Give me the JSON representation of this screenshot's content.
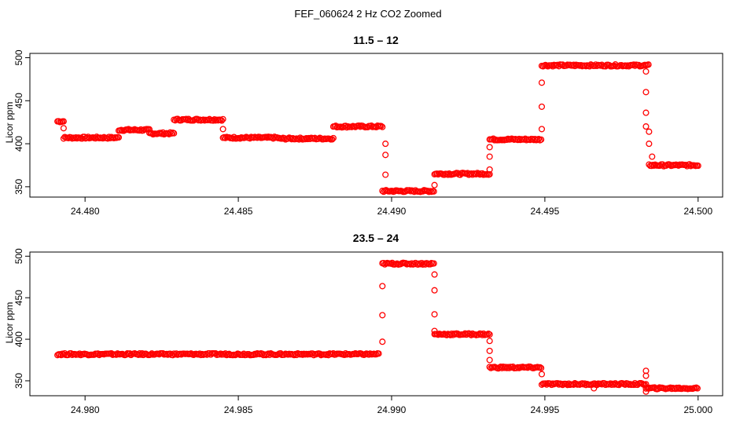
{
  "figure": {
    "title": "FEF_060624  2 Hz CO2 Zoomed"
  },
  "colors": {
    "points": "#ff0000",
    "axes": "#000000",
    "background": "#ffffff"
  },
  "chart_data": [
    {
      "type": "scatter",
      "title": "11.5 – 12",
      "xlabel": "",
      "ylabel": "Licor ppm",
      "xlim": [
        24.4782,
        24.5008
      ],
      "ylim": [
        338,
        505
      ],
      "xticks": [
        24.48,
        24.485,
        24.49,
        24.495,
        24.5
      ],
      "xtick_labels": [
        "24.480",
        "24.485",
        "24.490",
        "24.495",
        "24.500"
      ],
      "yticks": [
        350,
        400,
        450,
        500
      ],
      "ytick_labels": [
        "350",
        "400",
        "450",
        "500"
      ],
      "grid": false,
      "marker": "open-circle",
      "segments": [
        {
          "x_start": 24.4791,
          "x_end": 24.4793,
          "y": 426
        },
        {
          "x_start": 24.4793,
          "x_end": 24.4811,
          "y": 407
        },
        {
          "x_start": 24.4811,
          "x_end": 24.4821,
          "y": 416
        },
        {
          "x_start": 24.4821,
          "x_end": 24.4829,
          "y": 412
        },
        {
          "x_start": 24.4829,
          "x_end": 24.4845,
          "y": 428
        },
        {
          "x_start": 24.4845,
          "x_end": 24.4863,
          "y": 407
        },
        {
          "x_start": 24.4863,
          "x_end": 24.4881,
          "y": 406
        },
        {
          "x_start": 24.4881,
          "x_end": 24.4897,
          "y": 420
        },
        {
          "x_start": 24.4897,
          "x_end": 24.4914,
          "y": 345
        },
        {
          "x_start": 24.4914,
          "x_end": 24.4932,
          "y": 365
        },
        {
          "x_start": 24.4932,
          "x_end": 24.4949,
          "y": 405
        },
        {
          "x_start": 24.4949,
          "x_end": 24.4984,
          "y": 491
        },
        {
          "x_start": 24.4984,
          "x_end": 24.5,
          "y": 375
        }
      ],
      "transition_points": [
        {
          "x": 24.4793,
          "y": 418
        },
        {
          "x": 24.4845,
          "y": 417
        },
        {
          "x": 24.4898,
          "y": 400
        },
        {
          "x": 24.4898,
          "y": 387
        },
        {
          "x": 24.4898,
          "y": 364
        },
        {
          "x": 24.4914,
          "y": 352
        },
        {
          "x": 24.4932,
          "y": 370
        },
        {
          "x": 24.4932,
          "y": 385
        },
        {
          "x": 24.4932,
          "y": 396
        },
        {
          "x": 24.4949,
          "y": 417
        },
        {
          "x": 24.4949,
          "y": 443
        },
        {
          "x": 24.4949,
          "y": 471
        },
        {
          "x": 24.4983,
          "y": 484
        },
        {
          "x": 24.4983,
          "y": 460
        },
        {
          "x": 24.4983,
          "y": 436
        },
        {
          "x": 24.4983,
          "y": 420
        },
        {
          "x": 24.4984,
          "y": 414
        },
        {
          "x": 24.4984,
          "y": 400
        },
        {
          "x": 24.4985,
          "y": 385
        }
      ]
    },
    {
      "type": "scatter",
      "title": "23.5 – 24",
      "xlabel": "",
      "ylabel": "Licor ppm",
      "xlim": [
        24.9782,
        25.0008
      ],
      "ylim": [
        332,
        505
      ],
      "xticks": [
        24.98,
        24.985,
        24.99,
        24.995,
        25.0
      ],
      "xtick_labels": [
        "24.980",
        "24.985",
        "24.990",
        "24.995",
        "25.000"
      ],
      "yticks": [
        350,
        400,
        450,
        500
      ],
      "ytick_labels": [
        "350",
        "400",
        "450",
        "500"
      ],
      "grid": false,
      "marker": "open-circle",
      "segments": [
        {
          "x_start": 24.9791,
          "x_end": 24.9896,
          "y": 382
        },
        {
          "x_start": 24.9897,
          "x_end": 24.9914,
          "y": 491
        },
        {
          "x_start": 24.9914,
          "x_end": 24.9932,
          "y": 406
        },
        {
          "x_start": 24.9932,
          "x_end": 24.9949,
          "y": 366
        },
        {
          "x_start": 24.9949,
          "x_end": 24.9983,
          "y": 346
        },
        {
          "x_start": 24.9983,
          "x_end": 25.0,
          "y": 341
        }
      ],
      "transition_points": [
        {
          "x": 24.9897,
          "y": 397
        },
        {
          "x": 24.9897,
          "y": 429
        },
        {
          "x": 24.9897,
          "y": 464
        },
        {
          "x": 24.9914,
          "y": 478
        },
        {
          "x": 24.9914,
          "y": 459
        },
        {
          "x": 24.9914,
          "y": 430
        },
        {
          "x": 24.9914,
          "y": 410
        },
        {
          "x": 24.9932,
          "y": 398
        },
        {
          "x": 24.9932,
          "y": 386
        },
        {
          "x": 24.9932,
          "y": 375
        },
        {
          "x": 24.9949,
          "y": 358
        },
        {
          "x": 24.9966,
          "y": 341
        },
        {
          "x": 24.9983,
          "y": 362
        },
        {
          "x": 24.9983,
          "y": 356
        },
        {
          "x": 24.9983,
          "y": 337
        }
      ]
    }
  ]
}
